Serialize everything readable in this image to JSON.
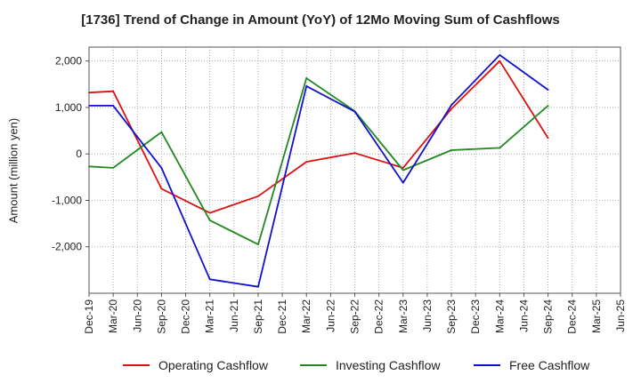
{
  "chart_data": {
    "type": "line",
    "title": "[1736]  Trend of Change in Amount (YoY) of 12Mo Moving Sum of Cashflows",
    "xlabel": "",
    "ylabel": "Amount (million yen)",
    "ylim": [
      -3000,
      2300
    ],
    "yticks": [
      2000,
      1000,
      0,
      -1000,
      -2000
    ],
    "ytick_labels": [
      "2,000",
      "1,000",
      "0",
      "-1,000",
      "-2,000"
    ],
    "categories": [
      "Dec-19",
      "Mar-20",
      "Jun-20",
      "Sep-20",
      "Dec-20",
      "Mar-21",
      "Jun-21",
      "Sep-21",
      "Dec-21",
      "Mar-22",
      "Jun-22",
      "Sep-22",
      "Dec-22",
      "Mar-23",
      "Jun-23",
      "Sep-23",
      "Dec-23",
      "Mar-24",
      "Jun-24",
      "Sep-24",
      "Dec-24",
      "Mar-25"
    ],
    "x_tick_labels": [
      "Dec-19",
      "Mar-20",
      "Jun-20",
      "Sep-20",
      "Dec-20",
      "Mar-21",
      "Jun-21",
      "Sep-21",
      "Dec-21",
      "Mar-22",
      "Jun-22",
      "Sep-22",
      "Dec-22",
      "Mar-23",
      "Jun-23",
      "Sep-23",
      "Dec-23",
      "Mar-24",
      "Jun-24",
      "Sep-24",
      "Dec-24",
      "Mar-25",
      "Jun-25"
    ],
    "grid": true,
    "legend_position": "bottom",
    "series": [
      {
        "name": "Operating Cashflow",
        "color": "#dd1111",
        "points": [
          [
            0,
            1320
          ],
          [
            1,
            1350
          ],
          [
            3,
            -750
          ],
          [
            5,
            -1270
          ],
          [
            7,
            -910
          ],
          [
            9,
            -170
          ],
          [
            11,
            20
          ],
          [
            13,
            -300
          ],
          [
            15,
            970
          ],
          [
            17,
            2000
          ],
          [
            19,
            340
          ]
        ]
      },
      {
        "name": "Investing Cashflow",
        "color": "#228822",
        "points": [
          [
            0,
            -270
          ],
          [
            1,
            -300
          ],
          [
            3,
            470
          ],
          [
            5,
            -1430
          ],
          [
            7,
            -1950
          ],
          [
            9,
            1630
          ],
          [
            11,
            920
          ],
          [
            13,
            -350
          ],
          [
            15,
            80
          ],
          [
            17,
            130
          ],
          [
            19,
            1040
          ]
        ]
      },
      {
        "name": "Free Cashflow",
        "color": "#1111cc",
        "points": [
          [
            0,
            1040
          ],
          [
            1,
            1040
          ],
          [
            3,
            -300
          ],
          [
            5,
            -2700
          ],
          [
            7,
            -2860
          ],
          [
            9,
            1460
          ],
          [
            11,
            910
          ],
          [
            13,
            -620
          ],
          [
            15,
            1050
          ],
          [
            17,
            2130
          ],
          [
            19,
            1380
          ]
        ]
      }
    ]
  }
}
